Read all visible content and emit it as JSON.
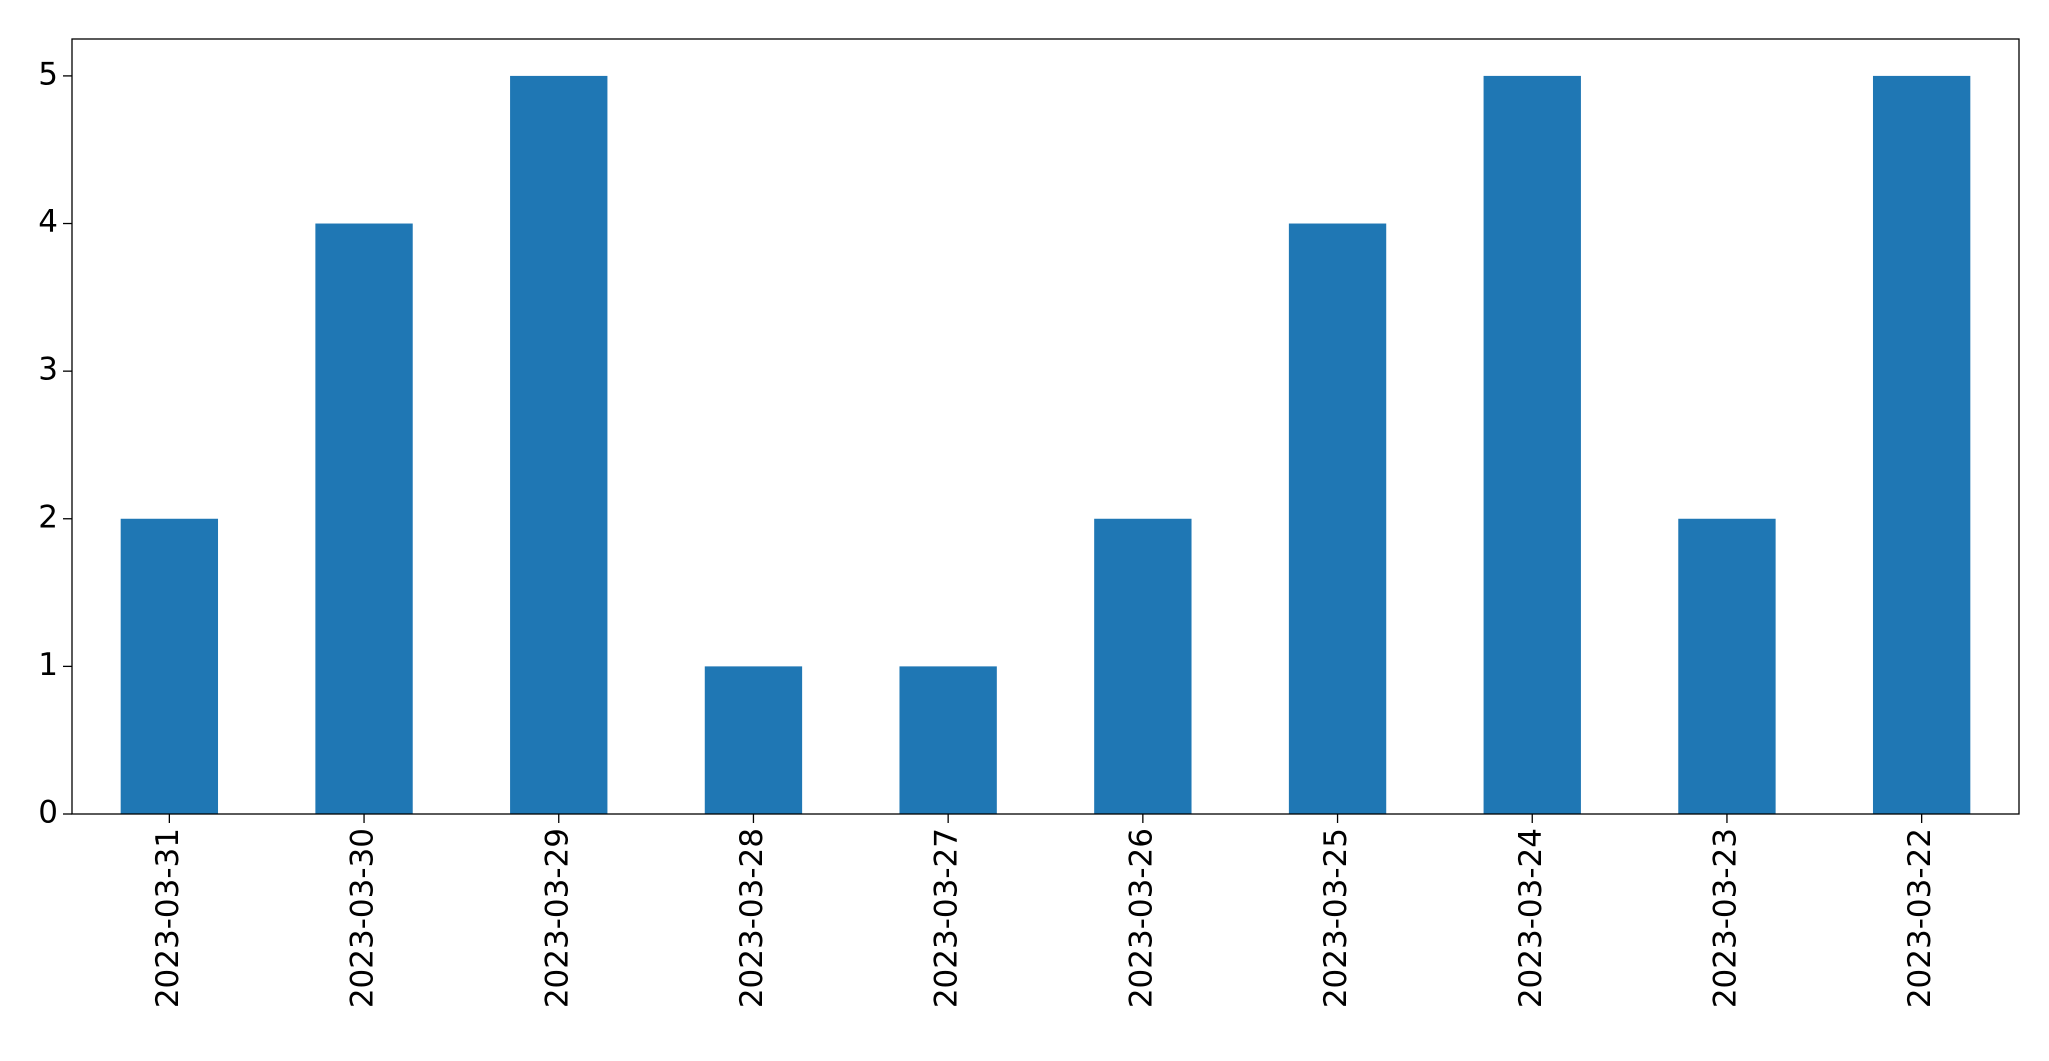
{
  "chart_data": {
    "type": "bar",
    "categories": [
      "2023-03-31",
      "2023-03-30",
      "2023-03-29",
      "2023-03-28",
      "2023-03-27",
      "2023-03-26",
      "2023-03-25",
      "2023-03-24",
      "2023-03-23",
      "2023-03-22"
    ],
    "values": [
      2,
      4,
      5,
      1,
      1,
      2,
      4,
      5,
      2,
      5
    ],
    "color": "#1f77b4",
    "ylim": [
      0,
      5.25
    ],
    "yticks": [
      0,
      1,
      2,
      3,
      4,
      5
    ],
    "grid": false
  }
}
